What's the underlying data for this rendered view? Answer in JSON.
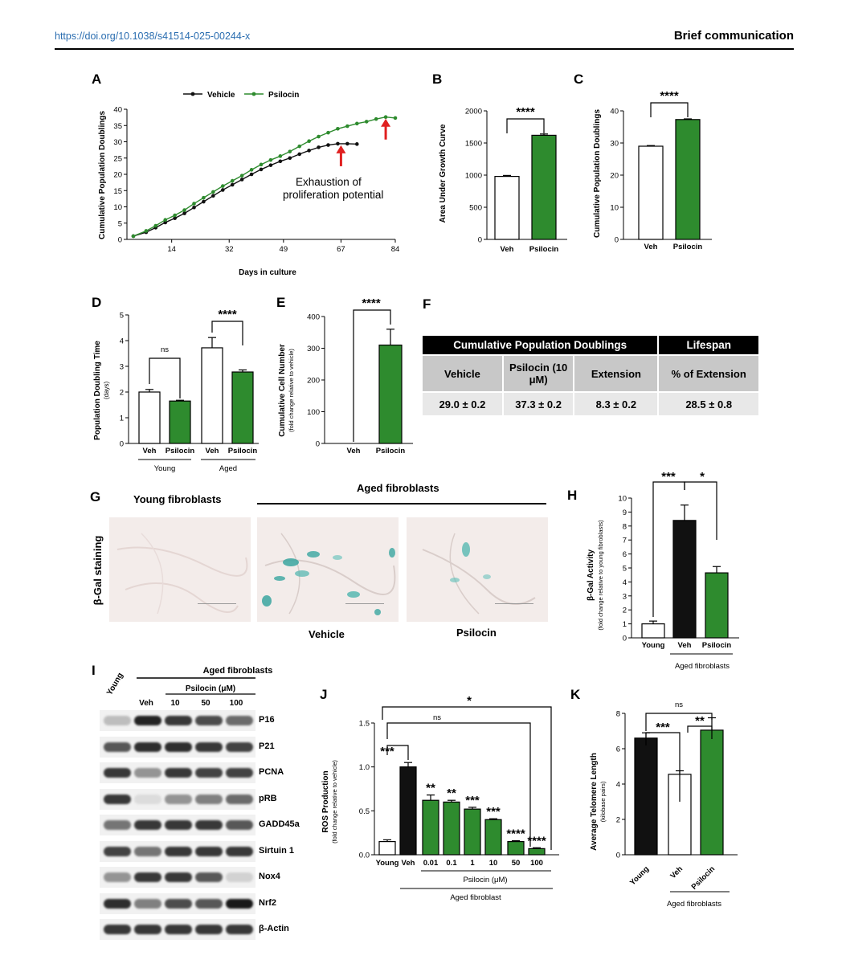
{
  "header": {
    "doi": "https://doi.org/10.1038/s41514-025-00244-x",
    "section": "Brief communication"
  },
  "panel_labels": {
    "a": "A",
    "b": "B",
    "c": "C",
    "d": "D",
    "e": "E",
    "f": "F",
    "g": "G",
    "h": "H",
    "i": "I",
    "j": "J",
    "k": "K"
  },
  "colors": {
    "green": "#2e8b2e",
    "black": "#111111",
    "white": "#ffffff",
    "arrow": "#e02020"
  },
  "panel_a": {
    "legend": [
      "Vehicle",
      "Psilocin"
    ],
    "annotation_line1": "Exhaustion of",
    "annotation_line2": "proliferation potential",
    "xlabel": "Days in culture",
    "ylabel": "Cumulative Population Doublings",
    "xticks": [
      "14",
      "32",
      "49",
      "67",
      "84"
    ],
    "yticks": [
      "0",
      "5",
      "10",
      "15",
      "20",
      "25",
      "30",
      "35",
      "40"
    ]
  },
  "panel_b": {
    "ylabel": "Area Under Growth Curve",
    "yticks": [
      "0",
      "500",
      "1000",
      "1500",
      "2000"
    ],
    "categories": [
      "Veh",
      "Psilocin"
    ],
    "sig": "****"
  },
  "panel_c": {
    "ylabel": "Cumulative Population Doublings",
    "yticks": [
      "0",
      "10",
      "20",
      "30",
      "40"
    ],
    "categories": [
      "Veh",
      "Psilocin"
    ],
    "sig": "****"
  },
  "panel_d": {
    "ylabel": "Population Doubling Time",
    "ysub": "(days)",
    "yticks": [
      "0",
      "1",
      "2",
      "3",
      "4",
      "5"
    ],
    "categories": [
      "Veh",
      "Psilocin",
      "Veh",
      "Psilocin"
    ],
    "groups": [
      "Young",
      "Aged"
    ],
    "sig_young": "ns",
    "sig_aged": "****"
  },
  "panel_e": {
    "ylabel": "Cumulative Cell Number",
    "ysub": "(fold change relative to vehicle)",
    "yticks": [
      "0",
      "100",
      "200",
      "300",
      "400"
    ],
    "categories": [
      "Veh",
      "Psilocin"
    ],
    "sig": "****"
  },
  "panel_f": {
    "header1": "Cumulative Population Doublings",
    "header2": "Lifespan",
    "sub": [
      "Vehicle",
      "Psilocin (10 μM)",
      "Extension",
      "% of Extension"
    ],
    "values": [
      "29.0 ± 0.2",
      "37.3 ± 0.2",
      "8.3 ± 0.2",
      "28.5 ± 0.8"
    ]
  },
  "panel_g": {
    "young": "Young fibroblasts",
    "aged": "Aged fibroblasts",
    "side": "β-Gal staining",
    "vehicle": "Vehicle",
    "psilocin": "Psilocin"
  },
  "panel_h": {
    "ylabel": "β-Gal Activity",
    "ysub": "(fold change relative to young fibroblasts)",
    "yticks": [
      "0",
      "1",
      "2",
      "3",
      "4",
      "5",
      "6",
      "7",
      "8",
      "9",
      "10"
    ],
    "categories": [
      "Young",
      "Veh",
      "Psilocin"
    ],
    "group": "Aged fibroblasts",
    "sig1": "***",
    "sig2": "*"
  },
  "panel_i": {
    "aged": "Aged fibroblasts",
    "young": "Young",
    "veh": "Veh",
    "psilocin": "Psilocin (μM)",
    "doses": [
      "10",
      "50",
      "100"
    ],
    "proteins": [
      "P16",
      "P21",
      "PCNA",
      "pRB",
      "GADD45a",
      "Sirtuin 1",
      "Nox4",
      "Nrf2",
      "β-Actin"
    ]
  },
  "panel_j": {
    "ylabel": "ROS Production",
    "ysub": "(fold change relative to vehicle)",
    "yticks": [
      "0.0",
      "0.5",
      "1.0",
      "1.5"
    ],
    "categories": [
      "Young",
      "Veh",
      "0.01",
      "0.1",
      "1",
      "10",
      "50",
      "100"
    ],
    "bar_sigs": [
      "***",
      "",
      "**",
      "**",
      "***",
      "***",
      "****",
      "****"
    ],
    "sig_ns": "ns",
    "sig_star": "*",
    "psilocin": "Psilocin (μM)",
    "group": "Aged fibroblast"
  },
  "panel_k": {
    "ylabel": "Average Telomere Length",
    "ysub": "(kilobase pairs)",
    "yticks": [
      "0",
      "2",
      "4",
      "6",
      "8"
    ],
    "categories": [
      "Young",
      "Veh",
      "Psilocin"
    ],
    "group": "Aged fibroblasts",
    "sig_ns": "ns",
    "sig1": "***",
    "sig2": "**"
  },
  "chart_data": [
    {
      "panel": "A",
      "type": "line",
      "title": "",
      "xlabel": "Days in culture",
      "ylabel": "Cumulative Population Doublings",
      "xlim": [
        0,
        84
      ],
      "ylim": [
        0,
        40
      ],
      "series": [
        {
          "name": "Vehicle",
          "x": [
            2,
            6,
            9,
            12,
            15,
            18,
            21,
            24,
            27,
            30,
            33,
            36,
            39,
            42,
            45,
            48,
            51,
            54,
            57,
            60,
            63,
            66,
            69,
            72
          ],
          "y": [
            1,
            2.2,
            3.6,
            5.2,
            6.5,
            8,
            9.8,
            11.6,
            13.4,
            15.2,
            16.8,
            18.4,
            20,
            21.5,
            22.8,
            24,
            25,
            26.2,
            27.3,
            28.3,
            29,
            29.4,
            29.4,
            29.3
          ]
        },
        {
          "name": "Psilocin",
          "x": [
            2,
            6,
            9,
            12,
            15,
            18,
            21,
            24,
            27,
            30,
            33,
            36,
            39,
            42,
            45,
            48,
            51,
            54,
            57,
            60,
            63,
            66,
            69,
            72,
            75,
            78,
            81,
            84
          ],
          "y": [
            1,
            2.6,
            4.2,
            6,
            7.4,
            9,
            11,
            12.8,
            14.6,
            16.4,
            18,
            19.6,
            21.4,
            23,
            24.4,
            25.6,
            27,
            28.6,
            30.2,
            31.6,
            32.8,
            34,
            34.8,
            35.6,
            36.2,
            37,
            37.6,
            37.3
          ]
        }
      ]
    },
    {
      "panel": "B",
      "type": "bar",
      "categories": [
        "Veh",
        "Psilocin"
      ],
      "values": [
        980,
        1620
      ],
      "errors": [
        15,
        20
      ],
      "ylim": [
        0,
        2000
      ],
      "ylabel": "Area Under Growth Curve"
    },
    {
      "panel": "C",
      "type": "bar",
      "categories": [
        "Veh",
        "Psilocin"
      ],
      "values": [
        29.0,
        37.3
      ],
      "errors": [
        0.2,
        0.2
      ],
      "ylim": [
        0,
        40
      ],
      "ylabel": "Cumulative Population Doublings"
    },
    {
      "panel": "D",
      "type": "bar",
      "categories": [
        "Young Veh",
        "Young Psilocin",
        "Aged Veh",
        "Aged Psilocin"
      ],
      "values": [
        2.0,
        1.65,
        3.72,
        2.78
      ],
      "errors": [
        0.1,
        0.03,
        0.4,
        0.08
      ],
      "ylim": [
        0,
        5
      ],
      "ylabel": "Population Doubling Time (days)"
    },
    {
      "panel": "E",
      "type": "bar",
      "categories": [
        "Veh",
        "Psilocin"
      ],
      "values": [
        0,
        310
      ],
      "errors": [
        0,
        50
      ],
      "ylim": [
        0,
        400
      ],
      "ylabel": "Cumulative Cell Number (fold change relative to vehicle)"
    },
    {
      "panel": "H",
      "type": "bar",
      "categories": [
        "Young",
        "Veh",
        "Psilocin"
      ],
      "values": [
        1.0,
        8.4,
        4.65
      ],
      "errors": [
        0.2,
        1.1,
        0.45
      ],
      "ylim": [
        0,
        10
      ],
      "ylabel": "β-Gal Activity (fold change relative to young fibroblasts)"
    },
    {
      "panel": "J",
      "type": "bar",
      "categories": [
        "Young",
        "Veh",
        "0.01",
        "0.1",
        "1",
        "10",
        "50",
        "100"
      ],
      "values": [
        0.15,
        1.0,
        0.62,
        0.6,
        0.52,
        0.4,
        0.15,
        0.07
      ],
      "errors": [
        0.02,
        0.05,
        0.06,
        0.02,
        0.02,
        0.01,
        0.01,
        0.01
      ],
      "ylim": [
        0,
        1.5
      ],
      "ylabel": "ROS Production (fold change relative to vehicle)"
    },
    {
      "panel": "K",
      "type": "bar",
      "categories": [
        "Young",
        "Veh",
        "Psilocin"
      ],
      "values": [
        6.6,
        4.55,
        7.05
      ],
      "errors": [
        0.3,
        0.2,
        0.7
      ],
      "ylim": [
        0,
        8
      ],
      "ylabel": "Average Telomere Length (kilobase pairs)"
    }
  ]
}
